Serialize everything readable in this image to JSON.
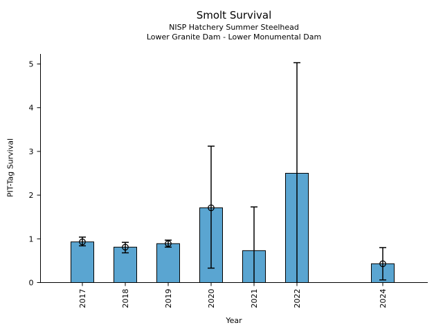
{
  "chart_data": {
    "type": "bar",
    "title": "Smolt Survival",
    "subtitle1": "NISP Hatchery Summer Steelhead",
    "subtitle2": "Lower Granite Dam - Lower Monumental Dam",
    "xlabel": "Year",
    "ylabel": "PIT-Tag Survival",
    "ylim": [
      0,
      5.22
    ],
    "yticks": [
      0,
      1,
      2,
      3,
      4,
      5
    ],
    "grid": false,
    "legend": "none",
    "bar_color": "#5AA5D1",
    "bar_edge_color": "#000000",
    "error_color": "#000000",
    "categories": [
      "2017",
      "2018",
      "2019",
      "2020",
      "2021",
      "2022",
      "2024"
    ],
    "bars": [
      {
        "year": "2017",
        "value": 0.93,
        "ci_low": 0.84,
        "ci_high": 1.04,
        "marker": true
      },
      {
        "year": "2018",
        "value": 0.81,
        "ci_low": 0.68,
        "ci_high": 0.92,
        "marker": true
      },
      {
        "year": "2019",
        "value": 0.89,
        "ci_low": 0.81,
        "ci_high": 0.97,
        "marker": true
      },
      {
        "year": "2020",
        "value": 1.71,
        "ci_low": 0.33,
        "ci_high": 3.12,
        "marker": true
      },
      {
        "year": "2021",
        "value": 0.73,
        "ci_low": 0.0,
        "ci_high": 1.73,
        "marker": false
      },
      {
        "year": "2022",
        "value": 2.5,
        "ci_low": 0.0,
        "ci_high": 5.03,
        "marker": false
      },
      {
        "year": "2024",
        "value": 0.43,
        "ci_low": 0.06,
        "ci_high": 0.8,
        "marker": true
      }
    ]
  }
}
